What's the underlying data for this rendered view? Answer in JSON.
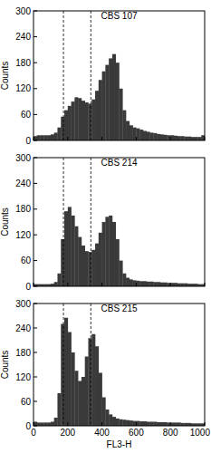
{
  "chart_data": [
    {
      "type": "histogram",
      "title": "CBS 107",
      "y_label": "Counts",
      "color": "#3a3a3a",
      "bins": [
        0,
        20,
        40,
        60,
        80,
        100,
        120,
        140,
        160,
        180,
        200,
        220,
        240,
        260,
        280,
        300,
        320,
        340,
        360,
        380,
        400,
        420,
        440,
        460,
        480,
        500,
        520,
        540,
        560,
        580,
        600,
        620,
        640,
        660,
        680,
        700,
        720,
        740,
        760,
        780,
        800,
        820,
        840,
        860,
        880,
        900,
        920,
        940,
        960,
        980,
        1000
      ],
      "counts": [
        10,
        12,
        12,
        12,
        12,
        14,
        18,
        30,
        55,
        70,
        80,
        90,
        100,
        98,
        92,
        88,
        85,
        95,
        115,
        140,
        160,
        175,
        190,
        200,
        180,
        120,
        70,
        45,
        35,
        30,
        28,
        25,
        22,
        20,
        18,
        17,
        15,
        14,
        13,
        12,
        12,
        11,
        10,
        10,
        9,
        9,
        8,
        8,
        8,
        12
      ],
      "xlim": [
        0,
        1000
      ],
      "ylim": [
        0,
        300
      ],
      "xticks": [
        0,
        200,
        400,
        600,
        800,
        1000
      ],
      "yticks": [
        0,
        60,
        120,
        180,
        240,
        300
      ],
      "tick_labels": "y",
      "reference_lines": [
        175,
        335
      ]
    },
    {
      "type": "histogram",
      "title": "CBS 214",
      "y_label": "Counts",
      "color": "#3a3a3a",
      "bins": [
        0,
        20,
        40,
        60,
        80,
        100,
        120,
        140,
        160,
        180,
        200,
        220,
        240,
        260,
        280,
        300,
        320,
        340,
        360,
        380,
        400,
        420,
        440,
        460,
        480,
        500,
        520,
        540,
        560,
        580,
        600,
        620,
        640,
        660,
        680,
        700,
        720,
        740,
        760,
        780,
        800,
        820,
        840,
        860,
        880,
        900,
        920,
        940,
        960,
        980,
        1000
      ],
      "counts": [
        5,
        5,
        5,
        5,
        5,
        6,
        10,
        30,
        110,
        175,
        185,
        165,
        140,
        115,
        95,
        82,
        80,
        85,
        100,
        125,
        150,
        162,
        165,
        150,
        110,
        60,
        30,
        20,
        16,
        14,
        13,
        12,
        12,
        11,
        11,
        10,
        10,
        9,
        9,
        8,
        8,
        8,
        7,
        7,
        7,
        6,
        6,
        6,
        5,
        5
      ],
      "xlim": [
        0,
        1000
      ],
      "ylim": [
        0,
        300
      ],
      "xticks": [
        0,
        200,
        400,
        600,
        800,
        1000
      ],
      "yticks": [
        0,
        60,
        120,
        180,
        240,
        300
      ],
      "tick_labels": "y",
      "reference_lines": [
        175,
        335
      ]
    },
    {
      "type": "histogram",
      "title": "CBS 215",
      "y_label": "Counts",
      "x_label": "FL3-H",
      "color": "#3a3a3a",
      "bins": [
        0,
        20,
        40,
        60,
        80,
        100,
        120,
        140,
        160,
        180,
        200,
        220,
        240,
        260,
        280,
        300,
        320,
        340,
        360,
        380,
        400,
        420,
        440,
        460,
        480,
        500,
        520,
        540,
        560,
        580,
        600,
        620,
        640,
        660,
        680,
        700,
        720,
        740,
        760,
        780,
        800,
        820,
        840,
        860,
        880,
        900,
        920,
        940,
        960,
        980,
        1000
      ],
      "counts": [
        10,
        8,
        8,
        8,
        8,
        10,
        20,
        80,
        250,
        265,
        230,
        180,
        135,
        110,
        120,
        170,
        215,
        225,
        195,
        130,
        70,
        40,
        28,
        22,
        18,
        16,
        15,
        14,
        13,
        12,
        12,
        11,
        11,
        10,
        10,
        10,
        9,
        9,
        9,
        8,
        8,
        8,
        8,
        7,
        7,
        7,
        6,
        6,
        6,
        6
      ],
      "xlim": [
        0,
        1000
      ],
      "ylim": [
        0,
        300
      ],
      "xticks": [
        0,
        200,
        400,
        600,
        800,
        1000
      ],
      "yticks": [
        0,
        60,
        120,
        180,
        240,
        300
      ],
      "reference_lines": [
        175,
        335
      ]
    }
  ]
}
